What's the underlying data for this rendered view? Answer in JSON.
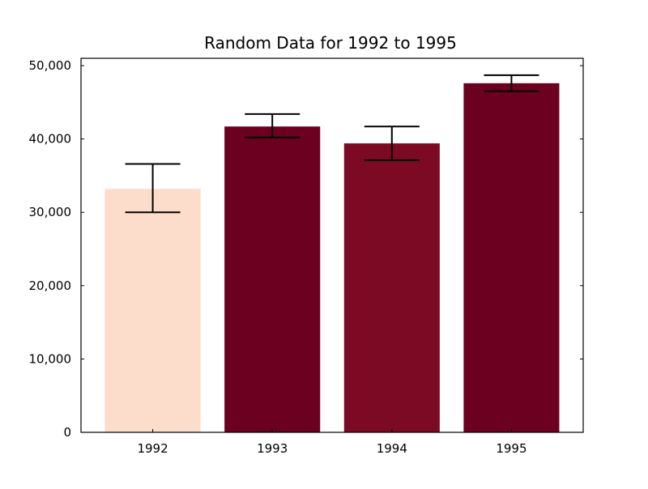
{
  "chart_data": {
    "type": "bar",
    "title": "Random Data for 1992 to 1995",
    "xlabel": "",
    "ylabel": "",
    "categories": [
      "1992",
      "1993",
      "1994",
      "1995"
    ],
    "values": [
      33200,
      41700,
      39400,
      47600
    ],
    "error_low": [
      30000,
      40200,
      37100,
      46500
    ],
    "error_high": [
      36600,
      43400,
      41700,
      48700
    ],
    "bar_colors": [
      "#fcdcca",
      "#6b0020",
      "#7d0a24",
      "#6b0020"
    ],
    "errorbar_color": "#000000",
    "ylim": [
      0,
      51000
    ],
    "yticks": [
      0,
      10000,
      20000,
      30000,
      40000,
      50000
    ],
    "ytick_labels": [
      "0",
      "10,000",
      "20,000",
      "30,000",
      "40,000",
      "50,000"
    ],
    "grid": false,
    "legend": "none"
  }
}
